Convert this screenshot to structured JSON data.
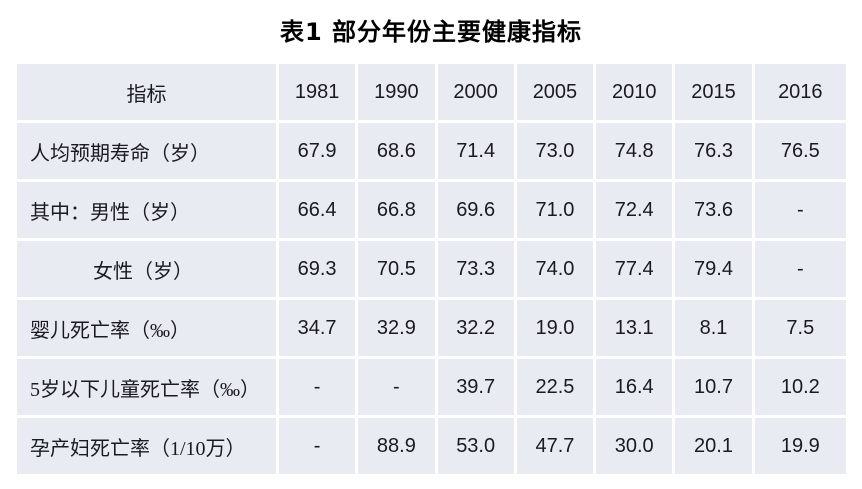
{
  "title": "表1  部分年份主要健康指标",
  "table": {
    "header": [
      "指标",
      "1981",
      "1990",
      "2000",
      "2005",
      "2010",
      "2015",
      "2016"
    ],
    "rows": [
      {
        "label": "人均预期寿命（岁）",
        "indent": false,
        "values": [
          "67.9",
          "68.6",
          "71.4",
          "73.0",
          "74.8",
          "76.3",
          "76.5"
        ]
      },
      {
        "label": "其中：男性（岁）",
        "indent": false,
        "values": [
          "66.4",
          "66.8",
          "69.6",
          "71.0",
          "72.4",
          "73.6",
          "-"
        ]
      },
      {
        "label": "女性（岁）",
        "indent": true,
        "values": [
          "69.3",
          "70.5",
          "73.3",
          "74.0",
          "77.4",
          "79.4",
          "-"
        ]
      },
      {
        "label": "婴儿死亡率（‰）",
        "indent": false,
        "values": [
          "34.7",
          "32.9",
          "32.2",
          "19.0",
          "13.1",
          "8.1",
          "7.5"
        ]
      },
      {
        "label": "5岁以下儿童死亡率（‰）",
        "indent": false,
        "values": [
          "-",
          "-",
          "39.7",
          "22.5",
          "16.4",
          "10.7",
          "10.2"
        ]
      },
      {
        "label": "孕产妇死亡率（1/10万）",
        "indent": false,
        "values": [
          "-",
          "88.9",
          "53.0",
          "47.7",
          "30.0",
          "20.1",
          "19.9"
        ]
      }
    ]
  },
  "colors": {
    "cell_background": "#e8ebf2",
    "gridline": "#ffffff",
    "text": "#1a1a22",
    "title_text": "#000000"
  },
  "chart_data": {
    "type": "table",
    "title": "表1  部分年份主要健康指标",
    "columns": [
      "指标",
      "1981",
      "1990",
      "2000",
      "2005",
      "2010",
      "2015",
      "2016"
    ],
    "rows": [
      [
        "人均预期寿命（岁）",
        67.9,
        68.6,
        71.4,
        73.0,
        74.8,
        76.3,
        76.5
      ],
      [
        "其中：男性（岁）",
        66.4,
        66.8,
        69.6,
        71.0,
        72.4,
        73.6,
        null
      ],
      [
        "女性（岁）",
        69.3,
        70.5,
        73.3,
        74.0,
        77.4,
        79.4,
        null
      ],
      [
        "婴儿死亡率（‰）",
        34.7,
        32.9,
        32.2,
        19.0,
        13.1,
        8.1,
        7.5
      ],
      [
        "5岁以下儿童死亡率（‰）",
        null,
        null,
        39.7,
        22.5,
        16.4,
        10.7,
        10.2
      ],
      [
        "孕产妇死亡率（1/10万）",
        null,
        88.9,
        53.0,
        47.7,
        30.0,
        20.1,
        19.9
      ]
    ]
  }
}
